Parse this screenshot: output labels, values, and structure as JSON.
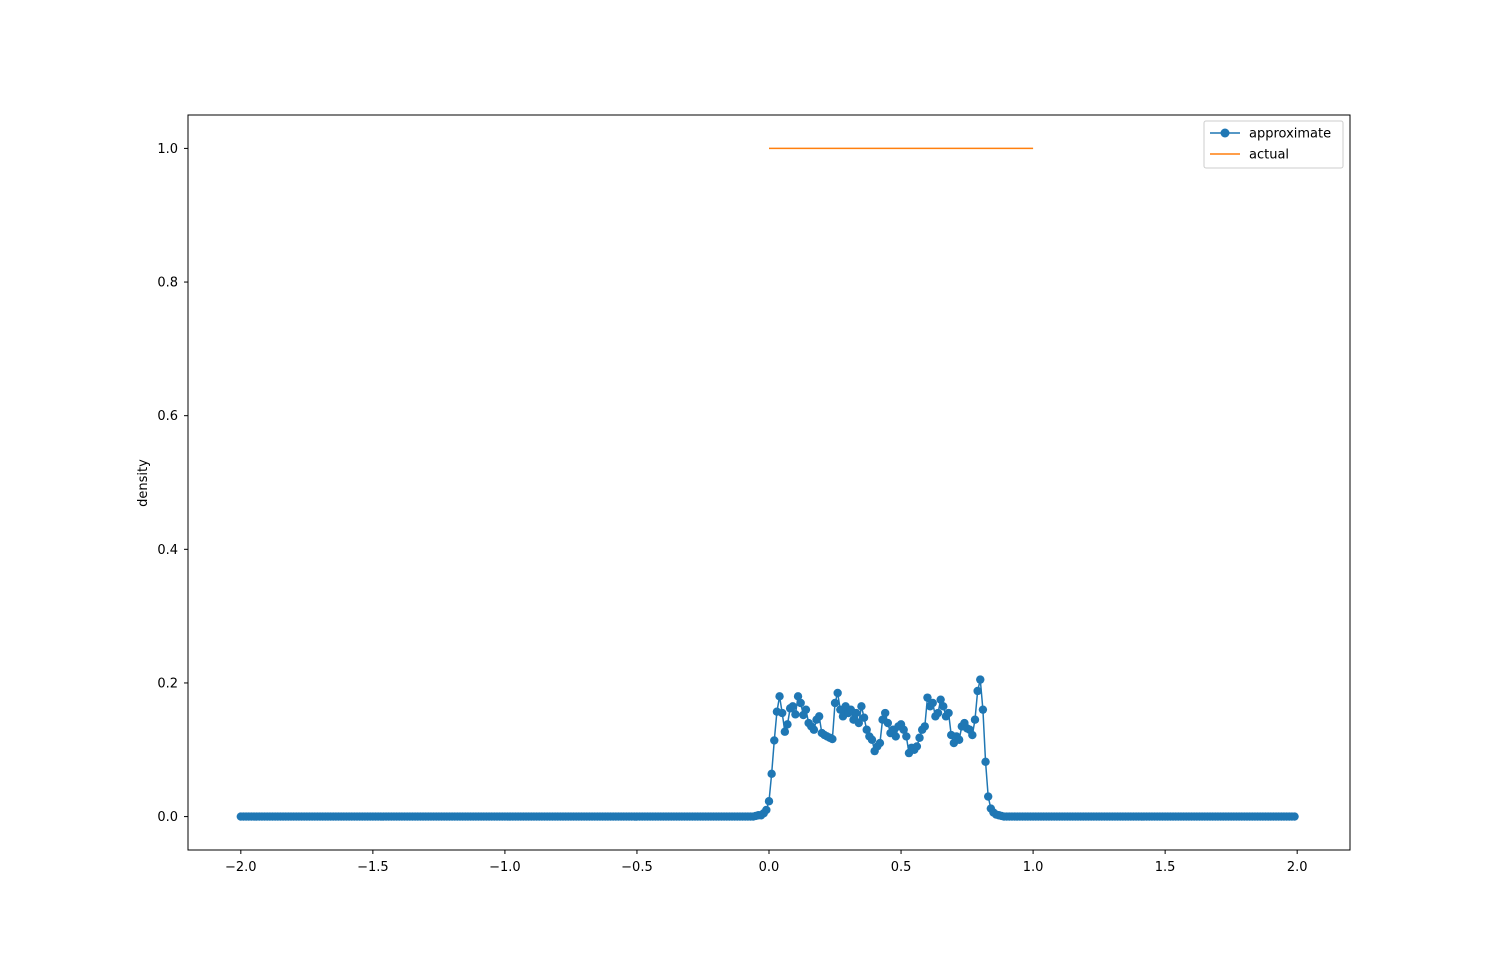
{
  "chart_data": {
    "type": "line",
    "title": "",
    "xlabel": "",
    "ylabel": "density",
    "xlim": [
      -2.2,
      2.2
    ],
    "ylim": [
      -0.05,
      1.05
    ],
    "xticks": [
      -2.0,
      -1.5,
      -1.0,
      -0.5,
      0.0,
      0.5,
      1.0,
      1.5,
      2.0
    ],
    "xtick_labels": [
      "−2.0",
      "−1.5",
      "−1.0",
      "−0.5",
      "0.0",
      "0.5",
      "1.0",
      "1.5",
      "2.0"
    ],
    "yticks": [
      0.0,
      0.2,
      0.4,
      0.6,
      0.8,
      1.0
    ],
    "ytick_labels": [
      "0.0",
      "0.2",
      "0.4",
      "0.6",
      "0.8",
      "1.0"
    ],
    "grid": false,
    "legend": {
      "placement": "top-right",
      "entries": [
        "approximate",
        "actual"
      ]
    },
    "series": [
      {
        "name": "approximate",
        "color": "#1f77b4",
        "marker": "circle",
        "x_range": [
          -2.0,
          1.99
        ],
        "x_step": 0.01,
        "zero_outside": [
          -0.06,
          1.07
        ],
        "points": [
          [
            -0.06,
            0.0
          ],
          [
            -0.05,
            0.001
          ],
          [
            -0.04,
            0.002
          ],
          [
            -0.03,
            0.002
          ],
          [
            -0.02,
            0.005
          ],
          [
            -0.01,
            0.01
          ],
          [
            0.0,
            0.023
          ],
          [
            0.01,
            0.064
          ],
          [
            0.02,
            0.114
          ],
          [
            0.03,
            0.157
          ],
          [
            0.04,
            0.18
          ],
          [
            0.05,
            0.155
          ],
          [
            0.06,
            0.127
          ],
          [
            0.07,
            0.138
          ],
          [
            0.08,
            0.162
          ],
          [
            0.09,
            0.165
          ],
          [
            0.1,
            0.153
          ],
          [
            0.11,
            0.18
          ],
          [
            0.12,
            0.17
          ],
          [
            0.13,
            0.152
          ],
          [
            0.14,
            0.16
          ],
          [
            0.15,
            0.14
          ],
          [
            0.16,
            0.135
          ],
          [
            0.17,
            0.13
          ],
          [
            0.18,
            0.145
          ],
          [
            0.19,
            0.15
          ],
          [
            0.2,
            0.125
          ],
          [
            0.21,
            0.122
          ],
          [
            0.22,
            0.12
          ],
          [
            0.23,
            0.118
          ],
          [
            0.24,
            0.116
          ],
          [
            0.25,
            0.17
          ],
          [
            0.26,
            0.185
          ],
          [
            0.27,
            0.16
          ],
          [
            0.28,
            0.15
          ],
          [
            0.29,
            0.165
          ],
          [
            0.3,
            0.155
          ],
          [
            0.31,
            0.16
          ],
          [
            0.32,
            0.145
          ],
          [
            0.33,
            0.155
          ],
          [
            0.34,
            0.14
          ],
          [
            0.35,
            0.165
          ],
          [
            0.36,
            0.148
          ],
          [
            0.37,
            0.13
          ],
          [
            0.38,
            0.12
          ],
          [
            0.39,
            0.115
          ],
          [
            0.4,
            0.098
          ],
          [
            0.41,
            0.105
          ],
          [
            0.42,
            0.11
          ],
          [
            0.43,
            0.145
          ],
          [
            0.44,
            0.155
          ],
          [
            0.45,
            0.14
          ],
          [
            0.46,
            0.125
          ],
          [
            0.47,
            0.13
          ],
          [
            0.48,
            0.12
          ],
          [
            0.49,
            0.135
          ],
          [
            0.5,
            0.138
          ],
          [
            0.51,
            0.13
          ],
          [
            0.52,
            0.12
          ],
          [
            0.53,
            0.095
          ],
          [
            0.54,
            0.103
          ],
          [
            0.55,
            0.1
          ],
          [
            0.56,
            0.105
          ],
          [
            0.57,
            0.118
          ],
          [
            0.58,
            0.13
          ],
          [
            0.59,
            0.135
          ],
          [
            0.6,
            0.178
          ],
          [
            0.61,
            0.165
          ],
          [
            0.62,
            0.17
          ],
          [
            0.63,
            0.15
          ],
          [
            0.64,
            0.155
          ],
          [
            0.65,
            0.175
          ],
          [
            0.66,
            0.165
          ],
          [
            0.67,
            0.15
          ],
          [
            0.68,
            0.155
          ],
          [
            0.69,
            0.122
          ],
          [
            0.7,
            0.11
          ],
          [
            0.71,
            0.12
          ],
          [
            0.72,
            0.115
          ],
          [
            0.73,
            0.135
          ],
          [
            0.74,
            0.14
          ],
          [
            0.75,
            0.132
          ],
          [
            0.76,
            0.13
          ],
          [
            0.77,
            0.122
          ],
          [
            0.78,
            0.145
          ],
          [
            0.79,
            0.188
          ],
          [
            0.8,
            0.205
          ],
          [
            0.81,
            0.16
          ],
          [
            0.82,
            0.082
          ],
          [
            0.83,
            0.03
          ],
          [
            0.84,
            0.012
          ],
          [
            0.85,
            0.006
          ],
          [
            0.86,
            0.003
          ],
          [
            0.87,
            0.002
          ],
          [
            0.88,
            0.001
          ],
          [
            0.89,
            0.0
          ]
        ]
      },
      {
        "name": "actual",
        "color": "#ff7f0e",
        "marker": "none",
        "x": [
          0.0,
          1.0
        ],
        "y": [
          1.0,
          1.0
        ]
      }
    ]
  }
}
